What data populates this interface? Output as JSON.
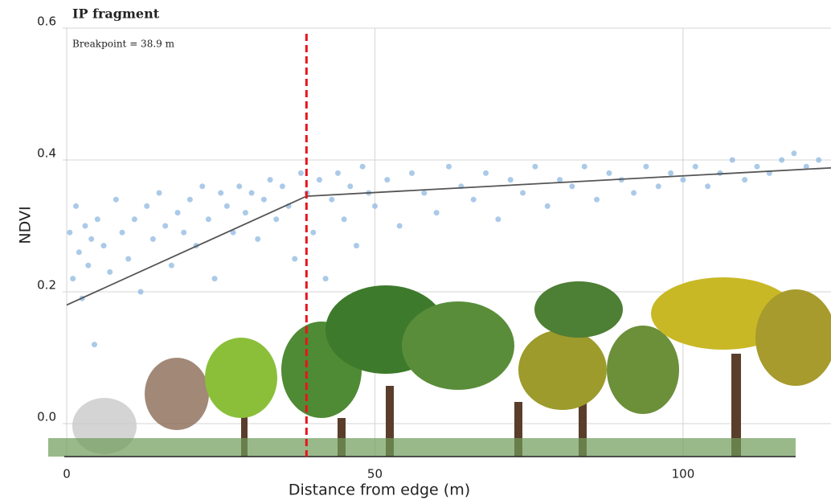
{
  "chart_data": {
    "type": "scatter",
    "title": "IP fragment",
    "annotation": "Breakpoint = 38.9 m",
    "x_label": "Distance from edge (m)",
    "y_label": "NDVI",
    "x": [
      0.5,
      1,
      1.5,
      2,
      2.5,
      3,
      3.5,
      4,
      4.5,
      5,
      6,
      7,
      8,
      9,
      10,
      11,
      12,
      13,
      14,
      15,
      16,
      17,
      18,
      19,
      20,
      21,
      22,
      23,
      24,
      25,
      26,
      27,
      28,
      29,
      30,
      31,
      32,
      33,
      34,
      35,
      36,
      37,
      38,
      39,
      40,
      41,
      42,
      43,
      44,
      45,
      46,
      47,
      48,
      49,
      50,
      52,
      54,
      56,
      58,
      60,
      62,
      64,
      66,
      68,
      70,
      72,
      74,
      76,
      78,
      80,
      82,
      84,
      86,
      88,
      90,
      92,
      94,
      96,
      98,
      100,
      102,
      104,
      106,
      108,
      110,
      112,
      114,
      116,
      118,
      120,
      122
    ],
    "values": [
      0.29,
      0.22,
      0.33,
      0.26,
      0.19,
      0.3,
      0.24,
      0.28,
      0.12,
      0.31,
      0.27,
      0.23,
      0.34,
      0.29,
      0.25,
      0.31,
      0.2,
      0.33,
      0.28,
      0.35,
      0.3,
      0.24,
      0.32,
      0.29,
      0.34,
      0.27,
      0.36,
      0.31,
      0.22,
      0.35,
      0.33,
      0.29,
      0.36,
      0.32,
      0.35,
      0.28,
      0.34,
      0.37,
      0.31,
      0.36,
      0.33,
      0.25,
      0.38,
      0.35,
      0.29,
      0.37,
      0.22,
      0.34,
      0.38,
      0.31,
      0.36,
      0.27,
      0.39,
      0.35,
      0.33,
      0.37,
      0.3,
      0.38,
      0.35,
      0.32,
      0.39,
      0.36,
      0.34,
      0.38,
      0.31,
      0.37,
      0.35,
      0.39,
      0.33,
      0.37,
      0.36,
      0.39,
      0.34,
      0.38,
      0.37,
      0.35,
      0.39,
      0.36,
      0.38,
      0.37,
      0.39,
      0.36,
      0.38,
      0.4,
      0.37,
      0.39,
      0.38,
      0.4,
      0.41,
      0.39,
      0.4
    ],
    "color": "#8fb8e0",
    "fit": {
      "x": [
        0,
        38.9,
        124
      ],
      "values": [
        0.18,
        0.345,
        0.388
      ],
      "color": "#555555"
    },
    "breakpoint": 38.9,
    "breakpoint_color": "#e8141c",
    "xlim": [
      -0.65,
      124
    ],
    "ylim": [
      -0.05,
      0.6
    ],
    "xticks": [
      0,
      50,
      100
    ],
    "yticks": [
      {
        "value": 0,
        "label": "0.0"
      },
      0.2,
      0.4,
      0.6
    ],
    "grid": true
  }
}
